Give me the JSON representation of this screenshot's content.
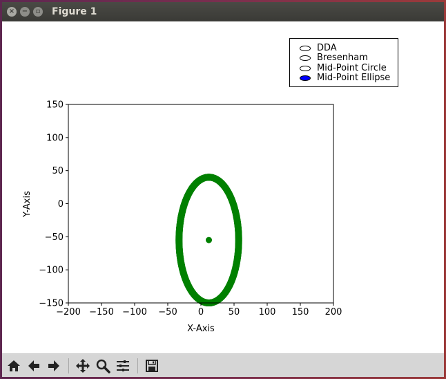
{
  "window": {
    "title": "Figure 1"
  },
  "legend": {
    "items": [
      {
        "label": "DDA",
        "selected": false
      },
      {
        "label": "Bresenham",
        "selected": false
      },
      {
        "label": "Mid-Point Circle",
        "selected": false
      },
      {
        "label": "Mid-Point Ellipse",
        "selected": true
      }
    ]
  },
  "toolbar": {
    "buttons": [
      "home-icon",
      "back-icon",
      "forward-icon",
      "pan-icon",
      "zoom-icon",
      "configure-subplots-icon",
      "save-icon"
    ]
  },
  "chart_data": {
    "type": "scatter",
    "title": "",
    "xlabel": "X-Axis",
    "ylabel": "Y-Axis",
    "xlim": [
      -200,
      200
    ],
    "ylim": [
      -150,
      150
    ],
    "xticks": [
      -200,
      -150,
      -100,
      -50,
      0,
      50,
      100,
      150,
      200
    ],
    "yticks": [
      150,
      100,
      50,
      0,
      -50,
      -100,
      -150
    ],
    "xtick_labels": [
      "−200",
      "−150",
      "−100",
      "−50",
      "0",
      "50",
      "100",
      "150",
      "200"
    ],
    "ytick_labels": [
      "150",
      "100",
      "50",
      "0",
      "−50",
      "−100",
      "−150"
    ],
    "grid": false,
    "center": {
      "x": 12,
      "y": -55
    },
    "ellipse": {
      "cx": 12,
      "cy": -55,
      "rx": 45,
      "ry": 95
    },
    "color": "#008000"
  }
}
